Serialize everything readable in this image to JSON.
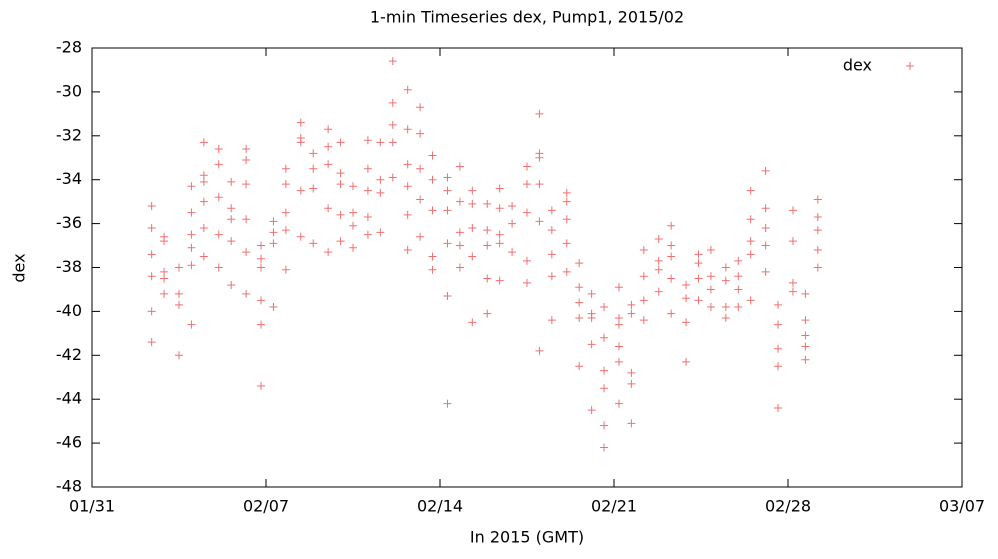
{
  "chart_data": {
    "type": "scatter",
    "title": "1-min Timeseries dex, Pump1, 2015/02",
    "xlabel": "In 2015 (GMT)",
    "ylabel": "dex",
    "legend": "top-right",
    "xlim": [
      0,
      35
    ],
    "xticks": [
      {
        "value": 0,
        "label": "01/31"
      },
      {
        "value": 7,
        "label": "02/07"
      },
      {
        "value": 14,
        "label": "02/14"
      },
      {
        "value": 21,
        "label": "02/21"
      },
      {
        "value": 28,
        "label": "02/28"
      },
      {
        "value": 35,
        "label": "03/07"
      }
    ],
    "ylim": [
      -48,
      -28
    ],
    "yticks": [
      -28,
      -30,
      -32,
      -34,
      -36,
      -38,
      -40,
      -42,
      -44,
      -46,
      -48
    ],
    "x": [
      2.4,
      2.4,
      2.4,
      2.4,
      2.4,
      2.4,
      2.9,
      2.9,
      2.9,
      2.9,
      2.9,
      3.5,
      3.5,
      3.5,
      3.5,
      4.0,
      4.0,
      4.0,
      4.0,
      4.0,
      4.0,
      4.5,
      4.5,
      4.5,
      4.5,
      4.5,
      4.5,
      5.1,
      5.1,
      5.1,
      5.1,
      5.1,
      5.6,
      5.6,
      5.6,
      5.6,
      5.6,
      6.2,
      6.2,
      6.2,
      6.2,
      6.2,
      6.2,
      6.8,
      6.8,
      6.8,
      6.8,
      6.8,
      6.8,
      7.3,
      7.3,
      7.3,
      7.3,
      7.8,
      7.8,
      7.8,
      7.8,
      7.8,
      8.4,
      8.4,
      8.4,
      8.4,
      8.4,
      8.9,
      8.9,
      8.9,
      8.9,
      9.5,
      9.5,
      9.5,
      9.5,
      9.5,
      10.0,
      10.0,
      10.0,
      10.0,
      10.0,
      10.5,
      10.5,
      10.5,
      10.5,
      11.1,
      11.1,
      11.1,
      11.1,
      11.1,
      11.6,
      11.6,
      11.6,
      11.6,
      12.1,
      12.1,
      12.1,
      12.1,
      12.1,
      12.7,
      12.7,
      12.7,
      12.7,
      12.7,
      12.7,
      13.2,
      13.2,
      13.2,
      13.2,
      13.2,
      13.7,
      13.7,
      13.7,
      13.7,
      13.7,
      14.3,
      14.3,
      14.3,
      14.3,
      14.3,
      14.3,
      14.8,
      14.8,
      14.8,
      14.8,
      14.8,
      15.3,
      15.3,
      15.3,
      15.3,
      15.3,
      15.9,
      15.9,
      15.9,
      15.9,
      15.9,
      16.4,
      16.4,
      16.4,
      16.4,
      16.4,
      16.9,
      16.9,
      16.9,
      17.5,
      17.5,
      17.5,
      17.5,
      17.5,
      18.0,
      18.0,
      18.0,
      18.0,
      18.0,
      18.0,
      18.5,
      18.5,
      18.5,
      18.5,
      18.5,
      19.1,
      19.1,
      19.1,
      19.1,
      19.1,
      19.6,
      19.6,
      19.6,
      19.6,
      19.6,
      20.1,
      20.1,
      20.1,
      20.1,
      20.1,
      20.6,
      20.6,
      20.6,
      20.6,
      20.6,
      20.6,
      21.2,
      21.2,
      21.2,
      21.2,
      21.2,
      21.2,
      21.7,
      21.7,
      21.7,
      21.7,
      21.7,
      22.2,
      22.2,
      22.2,
      22.2,
      22.8,
      22.8,
      22.8,
      22.8,
      23.3,
      23.3,
      23.3,
      23.3,
      23.3,
      23.9,
      23.9,
      23.9,
      23.9,
      24.4,
      24.4,
      24.4,
      24.4,
      24.9,
      24.9,
      24.9,
      24.9,
      25.5,
      25.5,
      25.5,
      25.5,
      26.0,
      26.0,
      26.0,
      26.0,
      26.5,
      26.5,
      26.5,
      26.5,
      26.5,
      27.1,
      27.1,
      27.1,
      27.1,
      27.1,
      27.6,
      27.6,
      27.6,
      27.6,
      27.6,
      28.2,
      28.2,
      28.2,
      28.2,
      28.7,
      28.7,
      28.7,
      28.7,
      28.7,
      29.2,
      29.2,
      29.2,
      29.2,
      29.2
    ],
    "series": [
      {
        "name": "dex",
        "color": "#f07070",
        "values": [
          -35.2,
          -36.2,
          -37.4,
          -38.4,
          -40,
          -41.4,
          -36.6,
          -36.8,
          -38.5,
          -38.2,
          -39.2,
          -38,
          -39.2,
          -39.7,
          -42,
          -34.3,
          -35.5,
          -36.5,
          -37.1,
          -37.9,
          -40.6,
          -32.3,
          -33.8,
          -34.1,
          -35,
          -36.2,
          -37.5,
          -32.6,
          -33.3,
          -34.8,
          -36.5,
          -38,
          -34.1,
          -35.3,
          -35.8,
          -36.8,
          -38.8,
          -32.6,
          -33.1,
          -34.2,
          -35.8,
          -37.3,
          -39.2,
          -37,
          -37.6,
          -38,
          -39.5,
          -40.6,
          -43.4,
          -35.9,
          -36.4,
          -36.9,
          -39.8,
          -33.5,
          -34.2,
          -35.5,
          -36.3,
          -38.1,
          -31.4,
          -32.1,
          -32.3,
          -34.5,
          -36.6,
          -32.8,
          -33.5,
          -34.4,
          -36.9,
          -31.7,
          -32.5,
          -33.3,
          -35.3,
          -37.3,
          -32.3,
          -33.7,
          -34.2,
          -35.6,
          -36.8,
          -34.3,
          -35.5,
          -36.1,
          -37.1,
          -32.2,
          -33.5,
          -34.5,
          -35.7,
          -36.5,
          -32.3,
          -34,
          -34.6,
          -36.4,
          -28.6,
          -30.5,
          -31.5,
          -32.3,
          -33.9,
          -29.9,
          -31.7,
          -33.3,
          -34.3,
          -35.6,
          -37.2,
          -30.7,
          -31.9,
          -33.5,
          -34.9,
          -36.6,
          -32.9,
          -34,
          -35.4,
          -37.5,
          -38.1,
          -33.9,
          -34.5,
          -35.4,
          -36.9,
          -39.3,
          -44.2,
          -33.4,
          -35,
          -36.4,
          -37,
          -38,
          -34.5,
          -35.1,
          -36.2,
          -37.5,
          -40.5,
          -35.1,
          -36.3,
          -37,
          -38.5,
          -40.1,
          -34.4,
          -35.3,
          -36.5,
          -36.9,
          -38.6,
          -35.2,
          -36,
          -37.3,
          -33.4,
          -34.2,
          -35.5,
          -37.7,
          -38.7,
          -31,
          -32.8,
          -33,
          -34.2,
          -35.9,
          -41.8,
          -35.4,
          -36.3,
          -37.4,
          -38.4,
          -40.4,
          -34.6,
          -35,
          -35.8,
          -36.9,
          -38.2,
          -37.8,
          -38.9,
          -39.6,
          -40.3,
          -42.5,
          -39.2,
          -40.1,
          -40.3,
          -41.5,
          -44.5,
          -39.8,
          -41.2,
          -42.7,
          -43.5,
          -45.2,
          -46.2,
          -38.9,
          -40.3,
          -40.6,
          -41.6,
          -42.3,
          -44.2,
          -39.7,
          -40.1,
          -42.8,
          -43.3,
          -45.1,
          -37.2,
          -38.4,
          -39.5,
          -40.4,
          -36.7,
          -37.7,
          -38.1,
          -39.1,
          -36.1,
          -37,
          -37.5,
          -38.5,
          -40.1,
          -38.8,
          -39.4,
          -40.5,
          -42.3,
          -37.4,
          -37.8,
          -38.5,
          -39.5,
          -37.2,
          -38.4,
          -39,
          -39.8,
          -38,
          -38.6,
          -39.8,
          -40.3,
          -37.7,
          -38.4,
          -39,
          -39.8,
          -34.5,
          -35.8,
          -36.8,
          -37.4,
          -39.5,
          -33.6,
          -35.3,
          -36.2,
          -37,
          -38.2,
          -39.7,
          -40.6,
          -41.7,
          -42.5,
          -44.4,
          -35.4,
          -36.8,
          -38.7,
          -39.1,
          -39.2,
          -40.4,
          -41.1,
          -41.6,
          -42.2,
          -34.9,
          -35.7,
          -36.3,
          -37.2,
          -38
        ]
      }
    ]
  }
}
